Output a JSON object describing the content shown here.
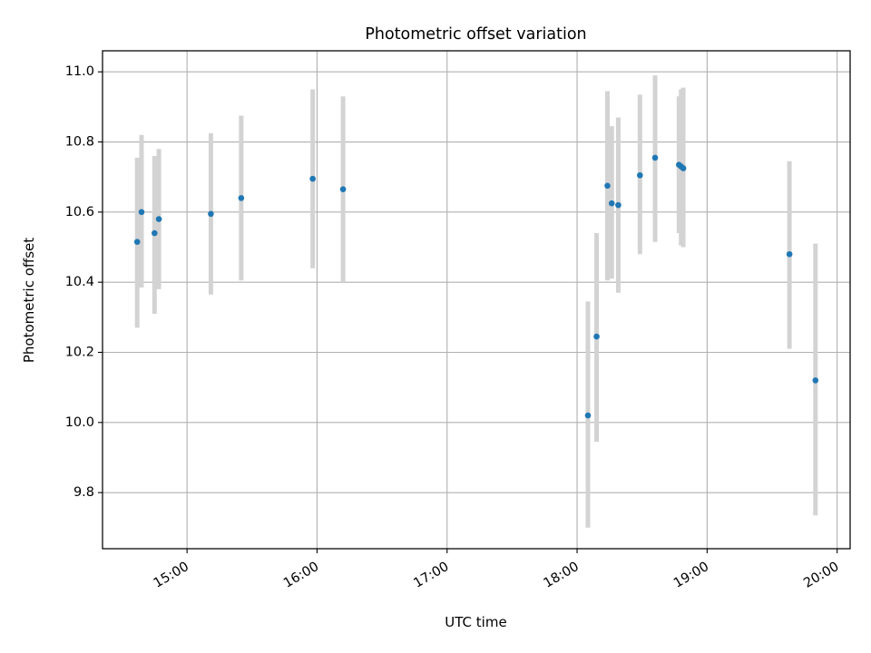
{
  "chart_data": {
    "type": "scatter",
    "title": "Photometric offset variation",
    "xlabel": "UTC time",
    "ylabel": "Photometric offset",
    "x_ticks": [
      "15:00",
      "16:00",
      "17:00",
      "18:00",
      "19:00",
      "20:00"
    ],
    "y_ticks": [
      "9.8",
      "10.0",
      "10.2",
      "10.4",
      "10.6",
      "10.8",
      "11.0"
    ],
    "xlim": [
      "14:21",
      "20:06"
    ],
    "ylim": [
      9.64,
      11.06
    ],
    "grid": true,
    "colors": {
      "point": "#1f77b4",
      "errorbar": "#d3d3d3",
      "grid": "#b0b0b0"
    },
    "series": [
      {
        "points": [
          {
            "x": "14:37",
            "y": 10.515,
            "low": 10.27,
            "high": 10.755
          },
          {
            "x": "14:39",
            "y": 10.6,
            "low": 10.385,
            "high": 10.82
          },
          {
            "x": "14:45",
            "y": 10.54,
            "low": 10.31,
            "high": 10.76
          },
          {
            "x": "14:47",
            "y": 10.58,
            "low": 10.38,
            "high": 10.78
          },
          {
            "x": "15:11",
            "y": 10.595,
            "low": 10.365,
            "high": 10.825
          },
          {
            "x": "15:25",
            "y": 10.64,
            "low": 10.405,
            "high": 10.875
          },
          {
            "x": "15:58",
            "y": 10.695,
            "low": 10.44,
            "high": 10.95
          },
          {
            "x": "16:12",
            "y": 10.665,
            "low": 10.4,
            "high": 10.93
          },
          {
            "x": "18:05",
            "y": 10.02,
            "low": 9.7,
            "high": 10.345
          },
          {
            "x": "18:09",
            "y": 10.245,
            "low": 9.945,
            "high": 10.54
          },
          {
            "x": "18:14",
            "y": 10.675,
            "low": 10.405,
            "high": 10.945
          },
          {
            "x": "18:16",
            "y": 10.625,
            "low": 10.41,
            "high": 10.845
          },
          {
            "x": "18:19",
            "y": 10.62,
            "low": 10.37,
            "high": 10.87
          },
          {
            "x": "18:29",
            "y": 10.705,
            "low": 10.48,
            "high": 10.935
          },
          {
            "x": "18:36",
            "y": 10.755,
            "low": 10.515,
            "high": 10.99
          },
          {
            "x": "18:47",
            "y": 10.735,
            "low": 10.54,
            "high": 10.93
          },
          {
            "x": "18:48",
            "y": 10.73,
            "low": 10.505,
            "high": 10.95
          },
          {
            "x": "18:49",
            "y": 10.725,
            "low": 10.5,
            "high": 10.955
          },
          {
            "x": "19:38",
            "y": 10.48,
            "low": 10.21,
            "high": 10.745
          },
          {
            "x": "19:50",
            "y": 10.12,
            "low": 9.735,
            "high": 10.51
          }
        ]
      }
    ]
  }
}
